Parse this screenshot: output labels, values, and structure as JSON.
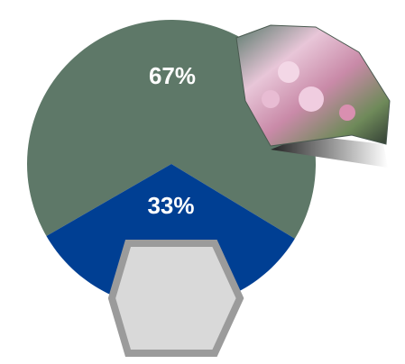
{
  "chart_data": {
    "type": "pie",
    "values": [
      67,
      33
    ],
    "value_labels": [
      "67%",
      "33%"
    ],
    "colors": [
      "#5e7868",
      "#003f93"
    ]
  }
}
